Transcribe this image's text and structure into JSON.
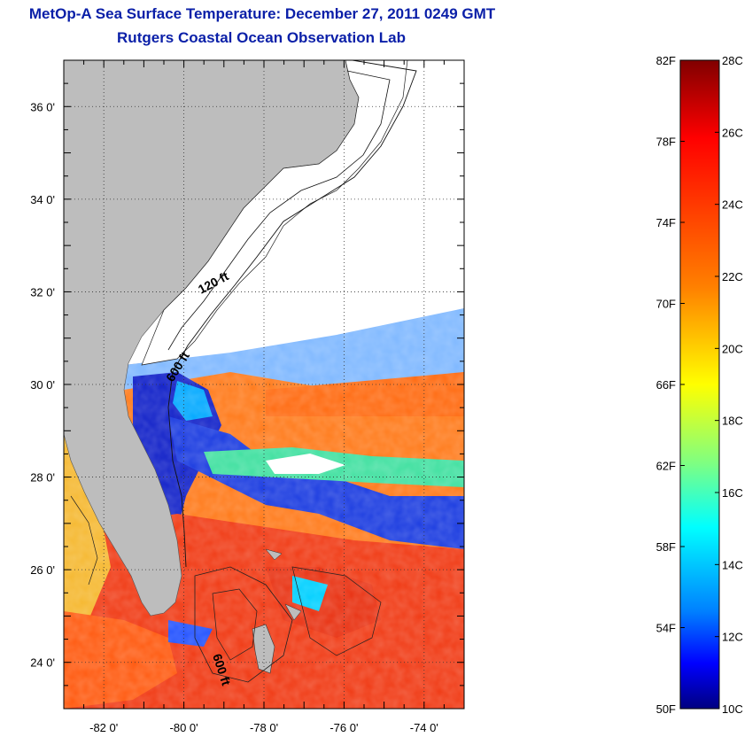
{
  "title": "MetOp-A Sea Surface Temperature:  December 27, 2011 0249 GMT",
  "subtitle": "Rutgers Coastal Ocean Observation Lab",
  "map": {
    "lon_range": [
      -83,
      -73
    ],
    "lat_range": [
      23,
      37
    ],
    "lon_ticks": [
      {
        "value": -82,
        "label": "-82 0'"
      },
      {
        "value": -80,
        "label": "-80 0'"
      },
      {
        "value": -78,
        "label": "-78 0'"
      },
      {
        "value": -76,
        "label": "-76 0'"
      },
      {
        "value": -74,
        "label": "-74 0'"
      }
    ],
    "lat_ticks": [
      {
        "value": 36,
        "label": "36 0'"
      },
      {
        "value": 34,
        "label": "34 0'"
      },
      {
        "value": 32,
        "label": "32 0'"
      },
      {
        "value": 30,
        "label": "30 0'"
      },
      {
        "value": 28,
        "label": "28 0'"
      },
      {
        "value": 26,
        "label": "26 0'"
      },
      {
        "value": 24,
        "label": "24 0'"
      }
    ],
    "contour_labels": [
      "120 ft",
      "600 ft",
      "600 ft"
    ],
    "grid": "dotted",
    "land_color": "#bdbdbd"
  },
  "colorbar": {
    "range_c": [
      10,
      28
    ],
    "range_f": [
      50,
      82
    ],
    "fahrenheit_labels": [
      {
        "value": 82,
        "label": "82F"
      },
      {
        "value": 78,
        "label": "78F"
      },
      {
        "value": 74,
        "label": "74F"
      },
      {
        "value": 70,
        "label": "70F"
      },
      {
        "value": 66,
        "label": "66F"
      },
      {
        "value": 62,
        "label": "62F"
      },
      {
        "value": 58,
        "label": "58F"
      },
      {
        "value": 54,
        "label": "54F"
      },
      {
        "value": 50,
        "label": "50F"
      }
    ],
    "celsius_labels": [
      {
        "value": 28,
        "label": "28C"
      },
      {
        "value": 26,
        "label": "26C"
      },
      {
        "value": 24,
        "label": "24C"
      },
      {
        "value": 22,
        "label": "22C"
      },
      {
        "value": 20,
        "label": "20C"
      },
      {
        "value": 18,
        "label": "18C"
      },
      {
        "value": 16,
        "label": "16C"
      },
      {
        "value": 14,
        "label": "14C"
      },
      {
        "value": 12,
        "label": "12C"
      },
      {
        "value": 10,
        "label": "10C"
      }
    ],
    "colormap": [
      "#800000",
      "#ff0000",
      "#ff8000",
      "#ffff00",
      "#80ff80",
      "#00ffff",
      "#0080ff",
      "#0000ff",
      "#000080"
    ]
  }
}
